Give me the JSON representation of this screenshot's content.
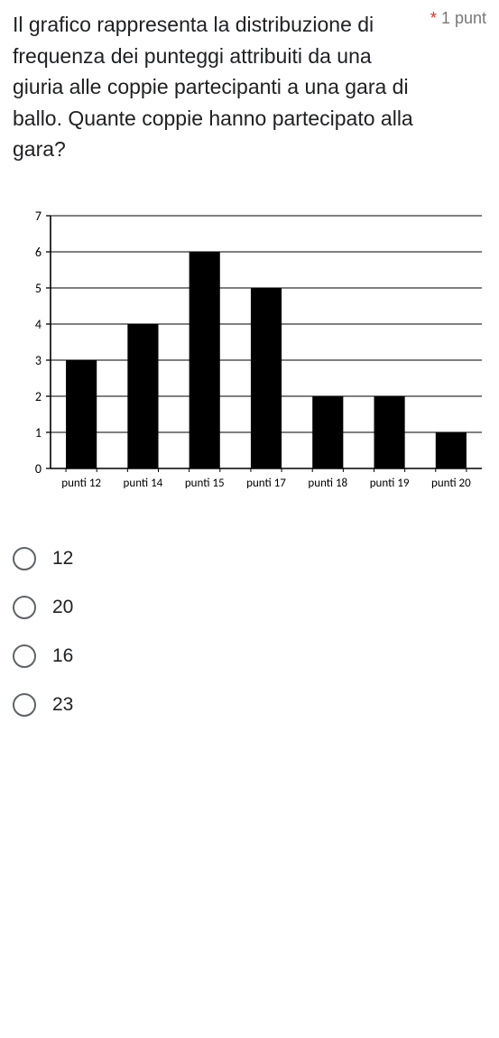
{
  "question": {
    "text": "Il grafico rappresenta la distribuzione di frequenza dei punteggi attribuiti da una giuria alle coppie partecipanti a una gara di ballo. Quante coppie hanno partecipato alla gara?",
    "required_mark": "*",
    "points_label": "1 punt"
  },
  "chart": {
    "type": "bar",
    "categories": [
      "punti 12",
      "punti 14",
      "punti 15",
      "punti 17",
      "punti 18",
      "punti 19",
      "punti 20"
    ],
    "values": [
      3,
      4,
      6,
      5,
      2,
      2,
      1
    ],
    "bar_color": "#000000",
    "axis_color": "#000000",
    "grid_color": "#000000",
    "background_color": "#ffffff",
    "ylim": [
      0,
      7
    ],
    "ytick_step": 1,
    "yticks": [
      0,
      1,
      2,
      3,
      4,
      5,
      6,
      7
    ],
    "bar_width_ratio": 0.5,
    "label_fontsize": 13,
    "ytick_fontsize": 14
  },
  "options": [
    {
      "label": "12"
    },
    {
      "label": "20"
    },
    {
      "label": "16"
    },
    {
      "label": "23"
    }
  ],
  "colors": {
    "text": "#202124",
    "muted": "#787878",
    "required": "#d93025",
    "radio_border": "#5f6368"
  }
}
